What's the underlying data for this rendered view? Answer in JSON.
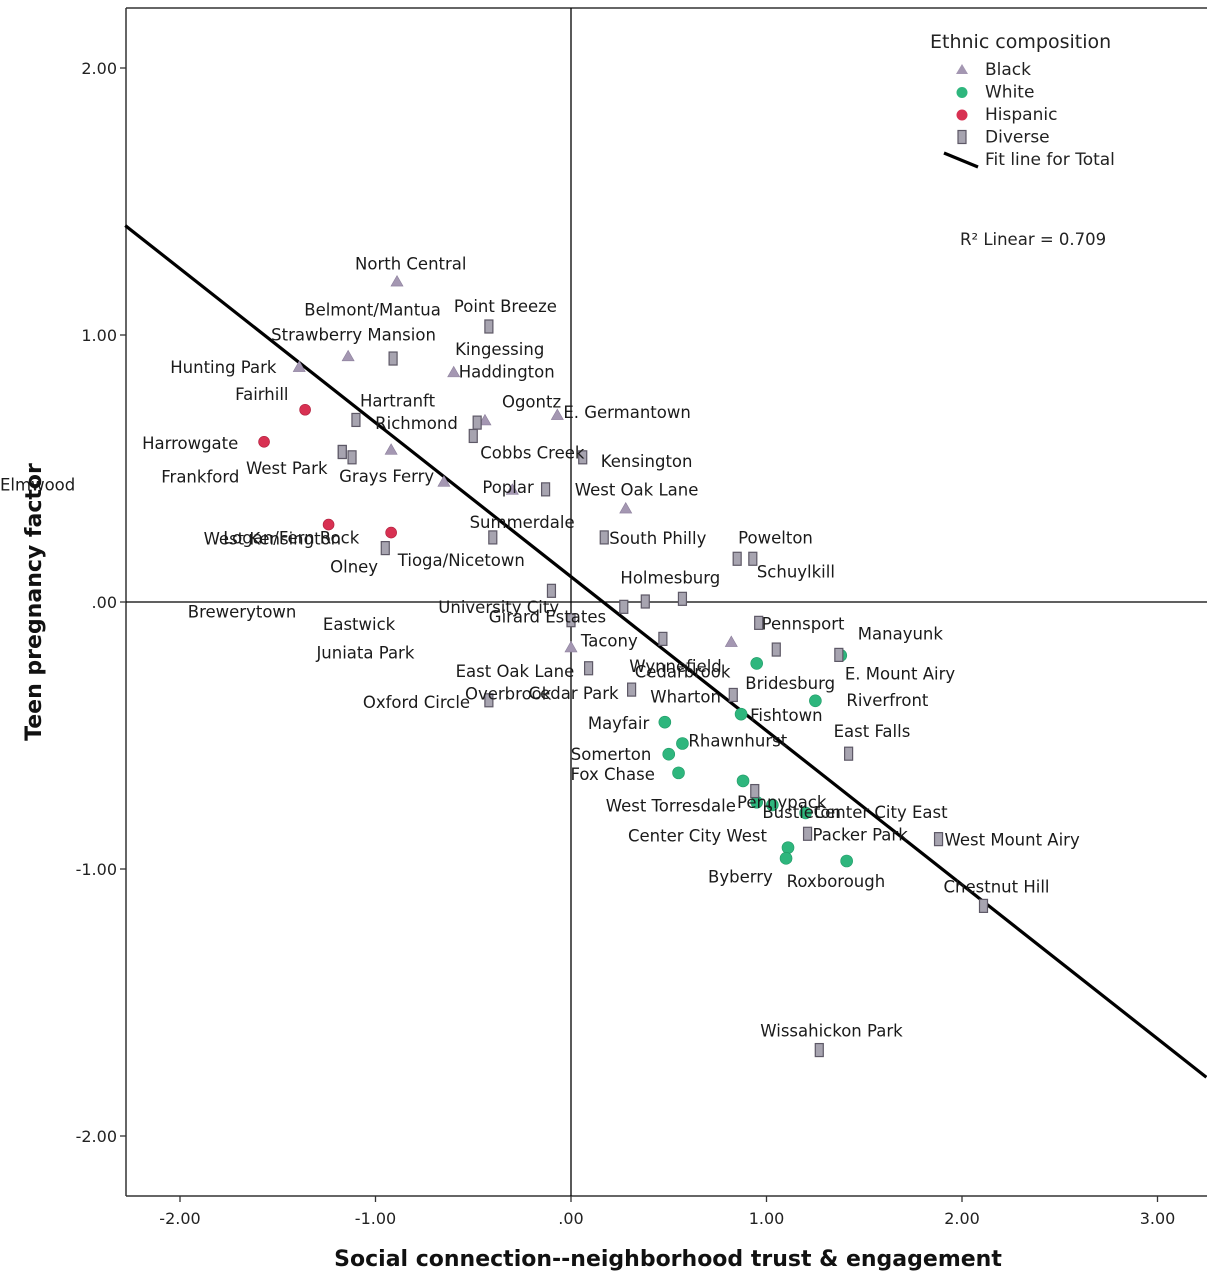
{
  "chart_data": {
    "type": "scatter",
    "xlabel": "Social connection--neighborhood trust & engagement",
    "ylabel": "Teen pregnancy factor",
    "xlim": [
      -2.28,
      3.25
    ],
    "ylim": [
      -2.22,
      2.22
    ],
    "xticks": [
      {
        "value": -2,
        "label": "-2.00"
      },
      {
        "value": -1,
        "label": "-1.00"
      },
      {
        "value": 0,
        "label": ".00"
      },
      {
        "value": 1,
        "label": "1.00"
      },
      {
        "value": 2,
        "label": "2.00"
      },
      {
        "value": 3,
        "label": "3.00"
      }
    ],
    "yticks": [
      {
        "value": 2,
        "label": "2.00"
      },
      {
        "value": 1,
        "label": "1.00"
      },
      {
        "value": 0,
        "label": ".00"
      },
      {
        "value": -1,
        "label": "-1.00"
      },
      {
        "value": -2,
        "label": "-2.00"
      }
    ],
    "reference_lines": {
      "x": 0,
      "y": 0
    },
    "legend": {
      "title": "Ethnic composition",
      "position": "top-right",
      "entries": [
        {
          "name": "Black",
          "marker": "triangle",
          "color": "#a497b2"
        },
        {
          "name": "White",
          "marker": "circle",
          "color": "#2eb67d"
        },
        {
          "name": "Hispanic",
          "marker": "circle",
          "color": "#d83152"
        },
        {
          "name": "Diverse",
          "marker": "square",
          "color": "#a7a4b0"
        },
        {
          "name": "Fit line for Total",
          "marker": "line",
          "color": "#000000"
        }
      ]
    },
    "fit_line": {
      "label": "R² Linear = 0.709",
      "x1": -2.28,
      "y1": 1.41,
      "x2": 3.25,
      "y2": -1.78
    },
    "colors": {
      "Black": "#a497b2",
      "White": "#2eb67d",
      "Hispanic": "#d83152",
      "Diverse": "#a7a4b0",
      "Diverse_stroke": "#5d5866",
      "fit": "#000000"
    },
    "series": [
      {
        "name": "Black",
        "points": [
          {
            "label": "North Central",
            "x": -0.89,
            "y": 1.2
          },
          {
            "label": "Strawberry Mansion",
            "x": -1.14,
            "y": 0.92
          },
          {
            "label": "Hunting Park",
            "x": -1.39,
            "y": 0.88
          },
          {
            "label": "Haddington",
            "x": -0.6,
            "y": 0.86
          },
          {
            "label": "Ogontz",
            "x": -0.44,
            "y": 0.68
          },
          {
            "label": "E. Germantown",
            "x": -0.07,
            "y": 0.7
          },
          {
            "label": "Grays Ferry",
            "x": -0.92,
            "y": 0.57
          },
          {
            "label": "Poplar",
            "x": -0.3,
            "y": 0.42
          },
          {
            "label": "West Oak Lane",
            "x": 0.28,
            "y": 0.35
          },
          {
            "label": "Overbrook",
            "x": 0,
            "y": -0.17
          },
          {
            "label": "Wynnefield",
            "x": 0.82,
            "y": -0.15
          },
          {
            "label": "Eastwick",
            "x": -0.65,
            "y": 0.45
          }
        ]
      },
      {
        "name": "White",
        "points": [
          {
            "label": "Manayunk",
            "x": 1.38,
            "y": -0.2
          },
          {
            "label": "Cedarbrook",
            "x": 0.95,
            "y": -0.23
          },
          {
            "label": "Riverfront",
            "x": 1.25,
            "y": -0.37
          },
          {
            "label": "Mayfair",
            "x": 0.48,
            "y": -0.45
          },
          {
            "label": "Fishtown",
            "x": 0.87,
            "y": -0.42
          },
          {
            "label": "Rhawnhurst",
            "x": 0.57,
            "y": -0.53
          },
          {
            "label": "Somerton",
            "x": 0.5,
            "y": -0.57
          },
          {
            "label": "Fox Chase",
            "x": 0.55,
            "y": -0.64
          },
          {
            "label": "Pennypack",
            "x": 0.88,
            "y": -0.67
          },
          {
            "label": "West Torresdale",
            "x": 0.95,
            "y": -0.75
          },
          {
            "label": "Bustleton",
            "x": 1.03,
            "y": -0.76
          },
          {
            "label": "Center City East",
            "x": 1.2,
            "y": -0.79
          },
          {
            "label": "Center City West",
            "x": 1.11,
            "y": -0.92
          },
          {
            "label": "Byberry",
            "x": 1.1,
            "y": -0.96
          },
          {
            "label": "Roxborough",
            "x": 1.41,
            "y": -0.97
          }
        ]
      },
      {
        "name": "Hispanic",
        "points": [
          {
            "label": "Fairhill",
            "x": -1.36,
            "y": 0.72
          },
          {
            "label": "Harrowgate",
            "x": -1.57,
            "y": 0.6
          },
          {
            "label": "West Kensington",
            "x": -1.24,
            "y": 0.29
          },
          {
            "label": "Olney",
            "x": -0.92,
            "y": 0.26
          }
        ]
      },
      {
        "name": "Diverse",
        "points": [
          {
            "label": "Point Breeze",
            "x": -0.42,
            "y": 1.03
          },
          {
            "label": "Kingessing",
            "x": -0.91,
            "y": 0.91
          },
          {
            "label": "Hartranft",
            "x": -1.1,
            "y": 0.68
          },
          {
            "label": "Richmond",
            "x": -0.48,
            "y": 0.67
          },
          {
            "label": "Cobbs Creek",
            "x": -0.5,
            "y": 0.62
          },
          {
            "label": "Frankford",
            "x": -1.17,
            "y": 0.56
          },
          {
            "label": "West Park",
            "x": -1.12,
            "y": 0.54
          },
          {
            "label": "Kensington",
            "x": 0.06,
            "y": 0.54
          },
          {
            "label": "Summerdale",
            "x": -0.13,
            "y": 0.42
          },
          {
            "label": "Tioga/Nicetown",
            "x": -0.4,
            "y": 0.24
          },
          {
            "label": "South Philly",
            "x": 0.17,
            "y": 0.24
          },
          {
            "label": "Logan/Fern Rock",
            "x": -0.95,
            "y": 0.2
          },
          {
            "label": "Powelton",
            "x": 0.85,
            "y": 0.16
          },
          {
            "label": "Schuylkill",
            "x": 0.93,
            "y": 0.16
          },
          {
            "label": "Juniata Park",
            "x": -0.1,
            "y": 0.04
          },
          {
            "label": "Holmesburg",
            "x": 0.57,
            "y": 0.01
          },
          {
            "label": "University City",
            "x": 0.38,
            "y": 0
          },
          {
            "label": "Girard Estates",
            "x": 0.27,
            "y": -0.02
          },
          {
            "label": "Elmwood",
            "x": 0,
            "y": -0.07
          },
          {
            "label": "Pennsport",
            "x": 0.96,
            "y": -0.08
          },
          {
            "label": "Tacony",
            "x": 0.47,
            "y": -0.14
          },
          {
            "label": "Bridesburg",
            "x": 1.05,
            "y": -0.18
          },
          {
            "label": "East Oak Lane",
            "x": 0.09,
            "y": -0.25
          },
          {
            "label": "Cedar Park",
            "x": 0.31,
            "y": -0.33
          },
          {
            "label": "Wharton",
            "x": 0.83,
            "y": -0.35
          },
          {
            "label": "Oxford Circle",
            "x": -0.42,
            "y": -0.37
          },
          {
            "label": "East Falls",
            "x": 1.42,
            "y": -0.57
          },
          {
            "label": "Brewerytown",
            "x": 0.94,
            "y": -0.71
          },
          {
            "label": "Packer Park",
            "x": 1.21,
            "y": -0.87
          },
          {
            "label": "West Mount Airy",
            "x": 1.88,
            "y": -0.89
          },
          {
            "label": "E. Mount Airy",
            "x": 1.37,
            "y": -0.2
          },
          {
            "label": "Chestnut Hill",
            "x": 2.11,
            "y": -1.14
          },
          {
            "label": "Wissahickon Park",
            "x": 1.27,
            "y": -1.68
          },
          {
            "label": "Belmont/Mantua",
            "x": -1.17,
            "y": 0.56
          }
        ]
      }
    ]
  }
}
